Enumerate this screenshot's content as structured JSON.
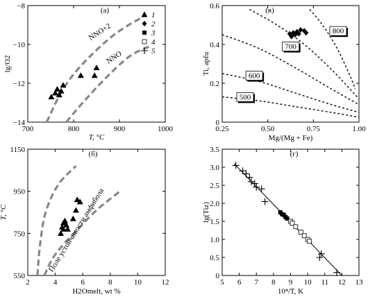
{
  "chart_data": [
    {
      "type": "scatter",
      "panel": "(а)",
      "xlabel": "T, °C",
      "ylabel": "lg/O2",
      "xlim": [
        700,
        1050
      ],
      "ylim": [
        -14,
        -8
      ],
      "xticks": [
        "700",
        "800",
        "900",
        "1000"
      ],
      "yticks": [
        "−14",
        "−12",
        "−10",
        "−8"
      ],
      "curves": [
        {
          "name": "NNO+2",
          "points": [
            [
              748,
              -14
            ],
            [
              790,
              -12.3
            ],
            [
              840,
              -11.0
            ],
            [
              920,
              -9.5
            ],
            [
              1000,
              -8.5
            ]
          ]
        },
        {
          "name": "NNO",
          "points": [
            [
              798,
              -14
            ],
            [
              840,
              -13.0
            ],
            [
              900,
              -11.7
            ],
            [
              960,
              -10.6
            ],
            [
              1010,
              -10.1
            ]
          ]
        }
      ],
      "series": [
        {
          "name": "1",
          "marker": "triangle",
          "points": [
            [
              760,
              -12.7
            ],
            [
              770,
              -12.5
            ],
            [
              775,
              -12.3
            ],
            [
              780,
              -12.6
            ],
            [
              785,
              -12.4
            ],
            [
              790,
              -12.1
            ],
            [
              835,
              -11.6
            ],
            [
              870,
              -11.6
            ],
            [
              875,
              -11.2
            ]
          ]
        }
      ],
      "legend": [
        {
          "label": "1",
          "marker": "triangle"
        },
        {
          "label": "2",
          "marker": "diamond"
        },
        {
          "label": "3",
          "marker": "square"
        },
        {
          "label": "4",
          "marker": "open-square"
        },
        {
          "label": "5",
          "marker": "plus"
        }
      ]
    },
    {
      "type": "scatter",
      "panel": "(в)",
      "xlabel": "Mg/(Mg + Fe)",
      "ylabel": "Ti, apfu",
      "xlim": [
        0.25,
        1.0
      ],
      "ylim": [
        0,
        0.6
      ],
      "xticks": [
        "0.25",
        "0.50",
        "0.75",
        "1.00"
      ],
      "yticks": [
        "0",
        "0.2",
        "0.4",
        "0.6"
      ],
      "isotherms": [
        {
          "label": "800",
          "points": [
            [
              0.73,
              0.58
            ],
            [
              0.8,
              0.5
            ],
            [
              0.88,
              0.38
            ],
            [
              0.95,
              0.24
            ],
            [
              0.98,
              0.17
            ]
          ]
        },
        {
          "label": "700",
          "points": [
            [
              0.4,
              0.58
            ],
            [
              0.55,
              0.5
            ],
            [
              0.7,
              0.4
            ],
            [
              0.85,
              0.27
            ],
            [
              1.0,
              0.12
            ]
          ]
        },
        {
          "label": "600",
          "points": [
            [
              0.25,
              0.45
            ],
            [
              0.45,
              0.38
            ],
            [
              0.65,
              0.28
            ],
            [
              0.85,
              0.17
            ],
            [
              1.0,
              0.09
            ]
          ]
        },
        {
          "label": "500",
          "points": [
            [
              0.25,
              0.25
            ],
            [
              0.45,
              0.21
            ],
            [
              0.65,
              0.15
            ],
            [
              0.85,
              0.09
            ],
            [
              1.0,
              0.05
            ]
          ]
        },
        {
          "label": "",
          "points": [
            [
              0.25,
              0.13
            ],
            [
              0.45,
              0.11
            ],
            [
              0.65,
              0.08
            ],
            [
              0.85,
              0.05
            ],
            [
              1.0,
              0.025
            ]
          ]
        }
      ],
      "series": [
        {
          "name": "2",
          "marker": "diamond",
          "points": [
            [
              0.62,
              0.455
            ],
            [
              0.63,
              0.44
            ],
            [
              0.64,
              0.46
            ],
            [
              0.65,
              0.45
            ],
            [
              0.66,
              0.465
            ],
            [
              0.67,
              0.455
            ],
            [
              0.68,
              0.475
            ],
            [
              0.7,
              0.47
            ],
            [
              0.71,
              0.46
            ]
          ]
        }
      ]
    },
    {
      "type": "scatter",
      "panel": "(б)",
      "xlabel": "H2Omelt, wt %",
      "ylabel": "T, °C",
      "xlim": [
        2,
        12
      ],
      "ylim": [
        550,
        1150
      ],
      "xticks": [
        "2",
        "4",
        "6",
        "8",
        "10",
        "12"
      ],
      "yticks": [
        "550",
        "750",
        "950",
        "1150"
      ],
      "annotation": "Поле устойчивости амфибола",
      "curves": [
        {
          "name": "",
          "points": [
            [
              2.7,
              550
            ],
            [
              2.9,
              700
            ],
            [
              3.3,
              850
            ],
            [
              4.2,
              980
            ],
            [
              5.5,
              1070
            ]
          ]
        },
        {
          "name": "",
          "points": [
            [
              3.2,
              550
            ],
            [
              4.0,
              650
            ],
            [
              5.5,
              760
            ],
            [
              7.0,
              860
            ],
            [
              8.7,
              950
            ]
          ]
        }
      ],
      "series": [
        {
          "name": "1",
          "marker": "triangle",
          "points": [
            [
              4.4,
              750
            ],
            [
              4.5,
              780
            ],
            [
              4.6,
              800
            ],
            [
              4.7,
              810
            ],
            [
              4.8,
              790
            ],
            [
              4.9,
              770
            ],
            [
              5.3,
              820
            ],
            [
              5.5,
              860
            ],
            [
              5.6,
              910
            ],
            [
              5.8,
              900
            ],
            [
              4.6,
              770
            ]
          ]
        }
      ]
    },
    {
      "type": "scatter",
      "panel": "(г)",
      "xlabel": "10⁴/T, K",
      "ylabel": "lg(Tiz)",
      "xlim": [
        5,
        13
      ],
      "ylim": [
        0,
        3.5
      ],
      "xticks": [
        "5",
        "6",
        "7",
        "8",
        "9",
        "10",
        "11",
        "12",
        "13"
      ],
      "yticks": [
        "0",
        "0.5",
        "1.0",
        "1.5",
        "2.0",
        "2.5",
        "3.0",
        "3.5"
      ],
      "fit_line": [
        [
          5.7,
          3.1
        ],
        [
          12.0,
          0.0
        ]
      ],
      "series": [
        {
          "name": "5",
          "marker": "plus",
          "points": [
            [
              5.8,
              3.05
            ],
            [
              6.2,
              2.9
            ],
            [
              6.4,
              2.82
            ],
            [
              6.6,
              2.72
            ],
            [
              6.7,
              2.6
            ],
            [
              6.9,
              2.55
            ],
            [
              7.0,
              2.45
            ],
            [
              7.3,
              2.4
            ],
            [
              7.5,
              2.05
            ],
            [
              10.7,
              0.5
            ],
            [
              10.8,
              0.6
            ],
            [
              11.7,
              0.08
            ]
          ]
        },
        {
          "name": "3",
          "marker": "square",
          "points": [
            [
              8.4,
              1.75
            ],
            [
              8.5,
              1.7
            ],
            [
              8.6,
              1.68
            ],
            [
              8.7,
              1.62
            ],
            [
              8.8,
              1.58
            ]
          ]
        },
        {
          "name": "4",
          "marker": "open-square",
          "points": [
            [
              9.0,
              1.5
            ],
            [
              9.1,
              1.45
            ],
            [
              9.3,
              1.35
            ],
            [
              9.6,
              1.2
            ],
            [
              9.8,
              1.1
            ],
            [
              10.0,
              1.0
            ],
            [
              10.1,
              0.95
            ]
          ]
        }
      ]
    }
  ]
}
